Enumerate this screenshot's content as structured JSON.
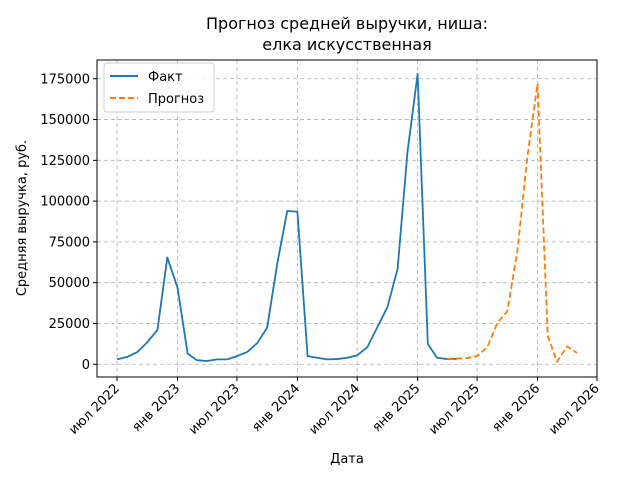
{
  "chart_data": {
    "type": "line",
    "title_line1": "Прогноз средней выручки, ниша:",
    "title_line2": "елка искусственная",
    "xlabel": "Дата",
    "ylabel": "Средняя выручка, руб.",
    "x_ticks": [
      "2022-07-01",
      "2023-01-01",
      "2023-07-01",
      "2024-01-01",
      "2024-07-01",
      "2025-01-01",
      "2025-07-01",
      "2026-01-01",
      "2026-07-01"
    ],
    "x_tick_labels": [
      "июл 2022",
      "янв 2023",
      "июл 2023",
      "янв 2024",
      "июл 2024",
      "янв 2025",
      "июл 2025",
      "янв 2026",
      "июл 2026"
    ],
    "y_ticks": [
      0,
      25000,
      50000,
      75000,
      100000,
      125000,
      150000,
      175000
    ],
    "y_tick_labels": [
      "0",
      "25000",
      "50000",
      "75000",
      "100000",
      "125000",
      "150000",
      "175000"
    ],
    "xlim": [
      "2022-05-01",
      "2026-07-01"
    ],
    "ylim": [
      -7800,
      186500
    ],
    "grid": true,
    "legend_position": "top-left",
    "series": [
      {
        "name": "Факт",
        "color": "#1f77b4",
        "style": "solid",
        "x": [
          "2022-07-01",
          "2022-08-01",
          "2022-09-01",
          "2022-10-01",
          "2022-11-01",
          "2022-12-01",
          "2023-01-01",
          "2023-02-01",
          "2023-03-01",
          "2023-04-01",
          "2023-05-01",
          "2023-06-01",
          "2023-07-01",
          "2023-08-01",
          "2023-09-01",
          "2023-10-01",
          "2023-11-01",
          "2023-12-01",
          "2024-01-01",
          "2024-02-01",
          "2024-03-01",
          "2024-04-01",
          "2024-05-01",
          "2024-06-01",
          "2024-07-01",
          "2024-08-01",
          "2024-09-01",
          "2024-10-01",
          "2024-11-01",
          "2024-12-01",
          "2025-01-01",
          "2025-02-01",
          "2025-03-01",
          "2025-04-01",
          "2025-05-01"
        ],
        "values": [
          3000,
          4500,
          7500,
          13500,
          21000,
          65500,
          47000,
          6500,
          2500,
          2000,
          3000,
          3000,
          5000,
          7500,
          13000,
          22500,
          62000,
          94000,
          93500,
          5000,
          4000,
          3000,
          3200,
          4000,
          5500,
          10500,
          23000,
          35000,
          58500,
          130000,
          178000,
          12500,
          4000,
          3200,
          3300
        ]
      },
      {
        "name": "Прогноз",
        "color": "#ff7f0e",
        "style": "dashed",
        "x": [
          "2025-04-01",
          "2025-05-01",
          "2025-06-01",
          "2025-07-01",
          "2025-08-01",
          "2025-09-01",
          "2025-10-01",
          "2025-11-01",
          "2025-12-01",
          "2026-01-01",
          "2026-02-01",
          "2026-03-01",
          "2026-04-01",
          "2026-05-01"
        ],
        "values": [
          3300,
          3500,
          3800,
          5000,
          10500,
          25500,
          32500,
          70000,
          127000,
          172000,
          17500,
          1500,
          11000,
          7000
        ]
      }
    ]
  }
}
